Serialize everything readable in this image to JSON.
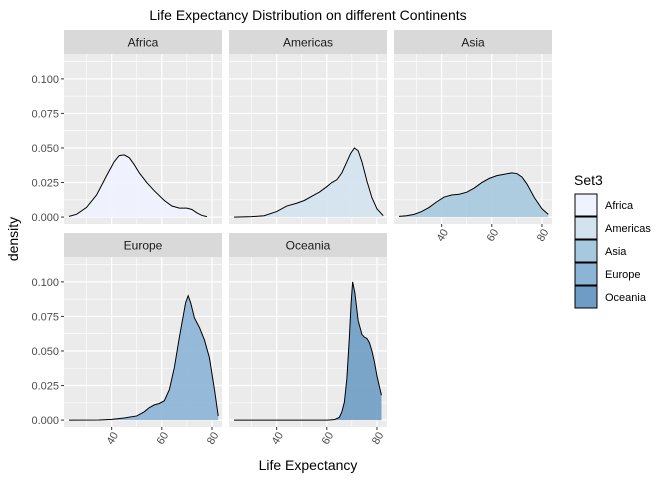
{
  "chart_data": {
    "type": "area",
    "title": "Life Expectancy Distribution on different Continents",
    "xlabel": "Life Expectancy",
    "ylabel": "density",
    "xlim": [
      21,
      84
    ],
    "ylim": [
      -0.005,
      0.118
    ],
    "x_ticks": [
      40,
      60,
      80
    ],
    "y_ticks": [
      0.0,
      0.025,
      0.05,
      0.075,
      0.1
    ],
    "y_tick_labels": [
      "0.000",
      "0.025",
      "0.050",
      "0.075",
      "0.100"
    ],
    "legend": {
      "title": "Set3",
      "position": "right"
    },
    "grid": true,
    "panels": [
      {
        "name": "Africa",
        "color": "#eff3ff",
        "x": [
          23,
          26,
          30,
          34,
          38,
          41,
          43,
          45,
          47,
          49,
          51,
          54,
          57,
          61,
          64,
          67,
          70,
          72,
          74,
          76,
          78
        ],
        "y": [
          0.0005,
          0.002,
          0.007,
          0.016,
          0.03,
          0.04,
          0.0445,
          0.045,
          0.043,
          0.038,
          0.032,
          0.025,
          0.019,
          0.012,
          0.008,
          0.0065,
          0.0065,
          0.0055,
          0.003,
          0.0012,
          0.0003
        ]
      },
      {
        "name": "Americas",
        "color": "#d3e3ee",
        "x": [
          23,
          30,
          35,
          40,
          44,
          48,
          51,
          55,
          57,
          60,
          62,
          64,
          66,
          68,
          69.5,
          71,
          72.5,
          74,
          76,
          78,
          80,
          82.5
        ],
        "y": [
          0.0,
          0.0003,
          0.001,
          0.004,
          0.008,
          0.01,
          0.012,
          0.016,
          0.018,
          0.022,
          0.025,
          0.027,
          0.032,
          0.04,
          0.046,
          0.05,
          0.048,
          0.04,
          0.026,
          0.014,
          0.006,
          0.001
        ]
      },
      {
        "name": "Asia",
        "color": "#a7c9df",
        "x": [
          23,
          26,
          29,
          32,
          35,
          38,
          41,
          44,
          47,
          50,
          53,
          56,
          59,
          62,
          65,
          68,
          70,
          72,
          74,
          77,
          80,
          82.5
        ],
        "y": [
          0.0005,
          0.001,
          0.002,
          0.004,
          0.007,
          0.011,
          0.0145,
          0.016,
          0.0165,
          0.018,
          0.021,
          0.025,
          0.028,
          0.03,
          0.031,
          0.032,
          0.0315,
          0.029,
          0.024,
          0.014,
          0.006,
          0.002
        ]
      },
      {
        "name": "Europe",
        "color": "#8cb4d6",
        "x": [
          23,
          35,
          40,
          45,
          50,
          53,
          55,
          57,
          59,
          61,
          63,
          65,
          67,
          68.5,
          69.5,
          70.5,
          71.5,
          73,
          75,
          77,
          79,
          81,
          82.5
        ],
        "y": [
          0.0,
          0.0001,
          0.0005,
          0.0015,
          0.003,
          0.006,
          0.009,
          0.011,
          0.012,
          0.014,
          0.022,
          0.038,
          0.06,
          0.075,
          0.085,
          0.09,
          0.085,
          0.074,
          0.067,
          0.058,
          0.045,
          0.022,
          0.003
        ]
      },
      {
        "name": "Oceania",
        "color": "#6e9cc4",
        "x": [
          23,
          55,
          60,
          63,
          65,
          66,
          67,
          68,
          69,
          69.7,
          70.3,
          71.2,
          72.5,
          74,
          75,
          76,
          77,
          78,
          79,
          80,
          81,
          81.8
        ],
        "y": [
          0.0,
          0.0,
          0.0,
          0.0003,
          0.002,
          0.006,
          0.013,
          0.03,
          0.06,
          0.085,
          0.1,
          0.092,
          0.072,
          0.062,
          0.06,
          0.059,
          0.056,
          0.05,
          0.042,
          0.032,
          0.024,
          0.018
        ]
      }
    ]
  }
}
